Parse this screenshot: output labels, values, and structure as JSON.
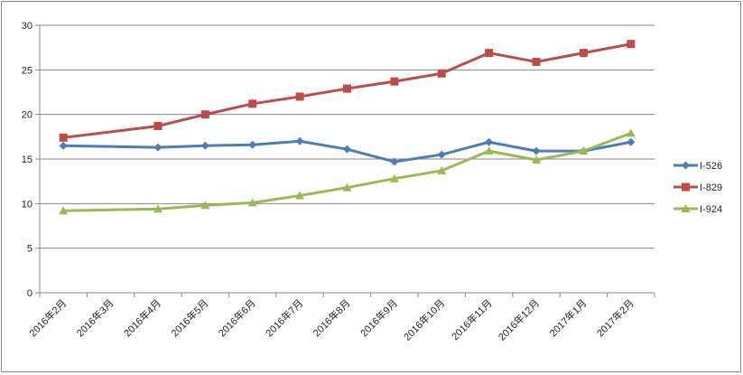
{
  "chart_data": {
    "type": "line",
    "title": "",
    "xlabel": "",
    "ylabel": "",
    "ylim": [
      0,
      30
    ],
    "yticks": [
      0,
      5,
      10,
      15,
      20,
      25,
      30
    ],
    "grid": true,
    "legend_position": "right",
    "categories": [
      "2016年2月",
      "2016年3月",
      "2016年4月",
      "2016年5月",
      "2016年6月",
      "2016年7月",
      "2016年8月",
      "2016年9月",
      "2016年10月",
      "2016年11月",
      "2016年12月",
      "2017年1月",
      "2017年2月"
    ],
    "series": [
      {
        "name": "I-526",
        "color": "#4a7ebb",
        "marker": "diamond",
        "points": [
          {
            "x": "2016年2月",
            "y": 16.5
          },
          {
            "x": "2016年4月",
            "y": 16.3
          },
          {
            "x": "2016年5月",
            "y": 16.5
          },
          {
            "x": "2016年6月",
            "y": 16.6
          },
          {
            "x": "2016年7月",
            "y": 17.0
          },
          {
            "x": "2016年8月",
            "y": 16.1
          },
          {
            "x": "2016年9月",
            "y": 14.7
          },
          {
            "x": "2016年10月",
            "y": 15.5
          },
          {
            "x": "2016年11月",
            "y": 16.9
          },
          {
            "x": "2016年12月",
            "y": 15.9
          },
          {
            "x": "2017年1月",
            "y": 15.9
          },
          {
            "x": "2017年2月",
            "y": 16.9
          }
        ]
      },
      {
        "name": "I-829",
        "color": "#be4b48",
        "marker": "square",
        "points": [
          {
            "x": "2016年2月",
            "y": 17.4
          },
          {
            "x": "2016年4月",
            "y": 18.7
          },
          {
            "x": "2016年5月",
            "y": 20.0
          },
          {
            "x": "2016年6月",
            "y": 21.2
          },
          {
            "x": "2016年7月",
            "y": 22.0
          },
          {
            "x": "2016年8月",
            "y": 22.9
          },
          {
            "x": "2016年9月",
            "y": 23.7
          },
          {
            "x": "2016年10月",
            "y": 24.6
          },
          {
            "x": "2016年11月",
            "y": 26.9
          },
          {
            "x": "2016年12月",
            "y": 25.9
          },
          {
            "x": "2017年1月",
            "y": 26.9
          },
          {
            "x": "2017年2月",
            "y": 27.9
          }
        ]
      },
      {
        "name": "I-924",
        "color": "#98b954",
        "marker": "triangle",
        "points": [
          {
            "x": "2016年2月",
            "y": 9.2
          },
          {
            "x": "2016年4月",
            "y": 9.4
          },
          {
            "x": "2016年5月",
            "y": 9.8
          },
          {
            "x": "2016年6月",
            "y": 10.1
          },
          {
            "x": "2016年7月",
            "y": 10.9
          },
          {
            "x": "2016年8月",
            "y": 11.8
          },
          {
            "x": "2016年9月",
            "y": 12.8
          },
          {
            "x": "2016年10月",
            "y": 13.7
          },
          {
            "x": "2016年11月",
            "y": 15.9
          },
          {
            "x": "2016年12月",
            "y": 14.9
          },
          {
            "x": "2017年1月",
            "y": 15.9
          },
          {
            "x": "2017年2月",
            "y": 17.9
          }
        ]
      }
    ]
  },
  "colors": {
    "gridline": "#868686",
    "axis": "#868686"
  }
}
